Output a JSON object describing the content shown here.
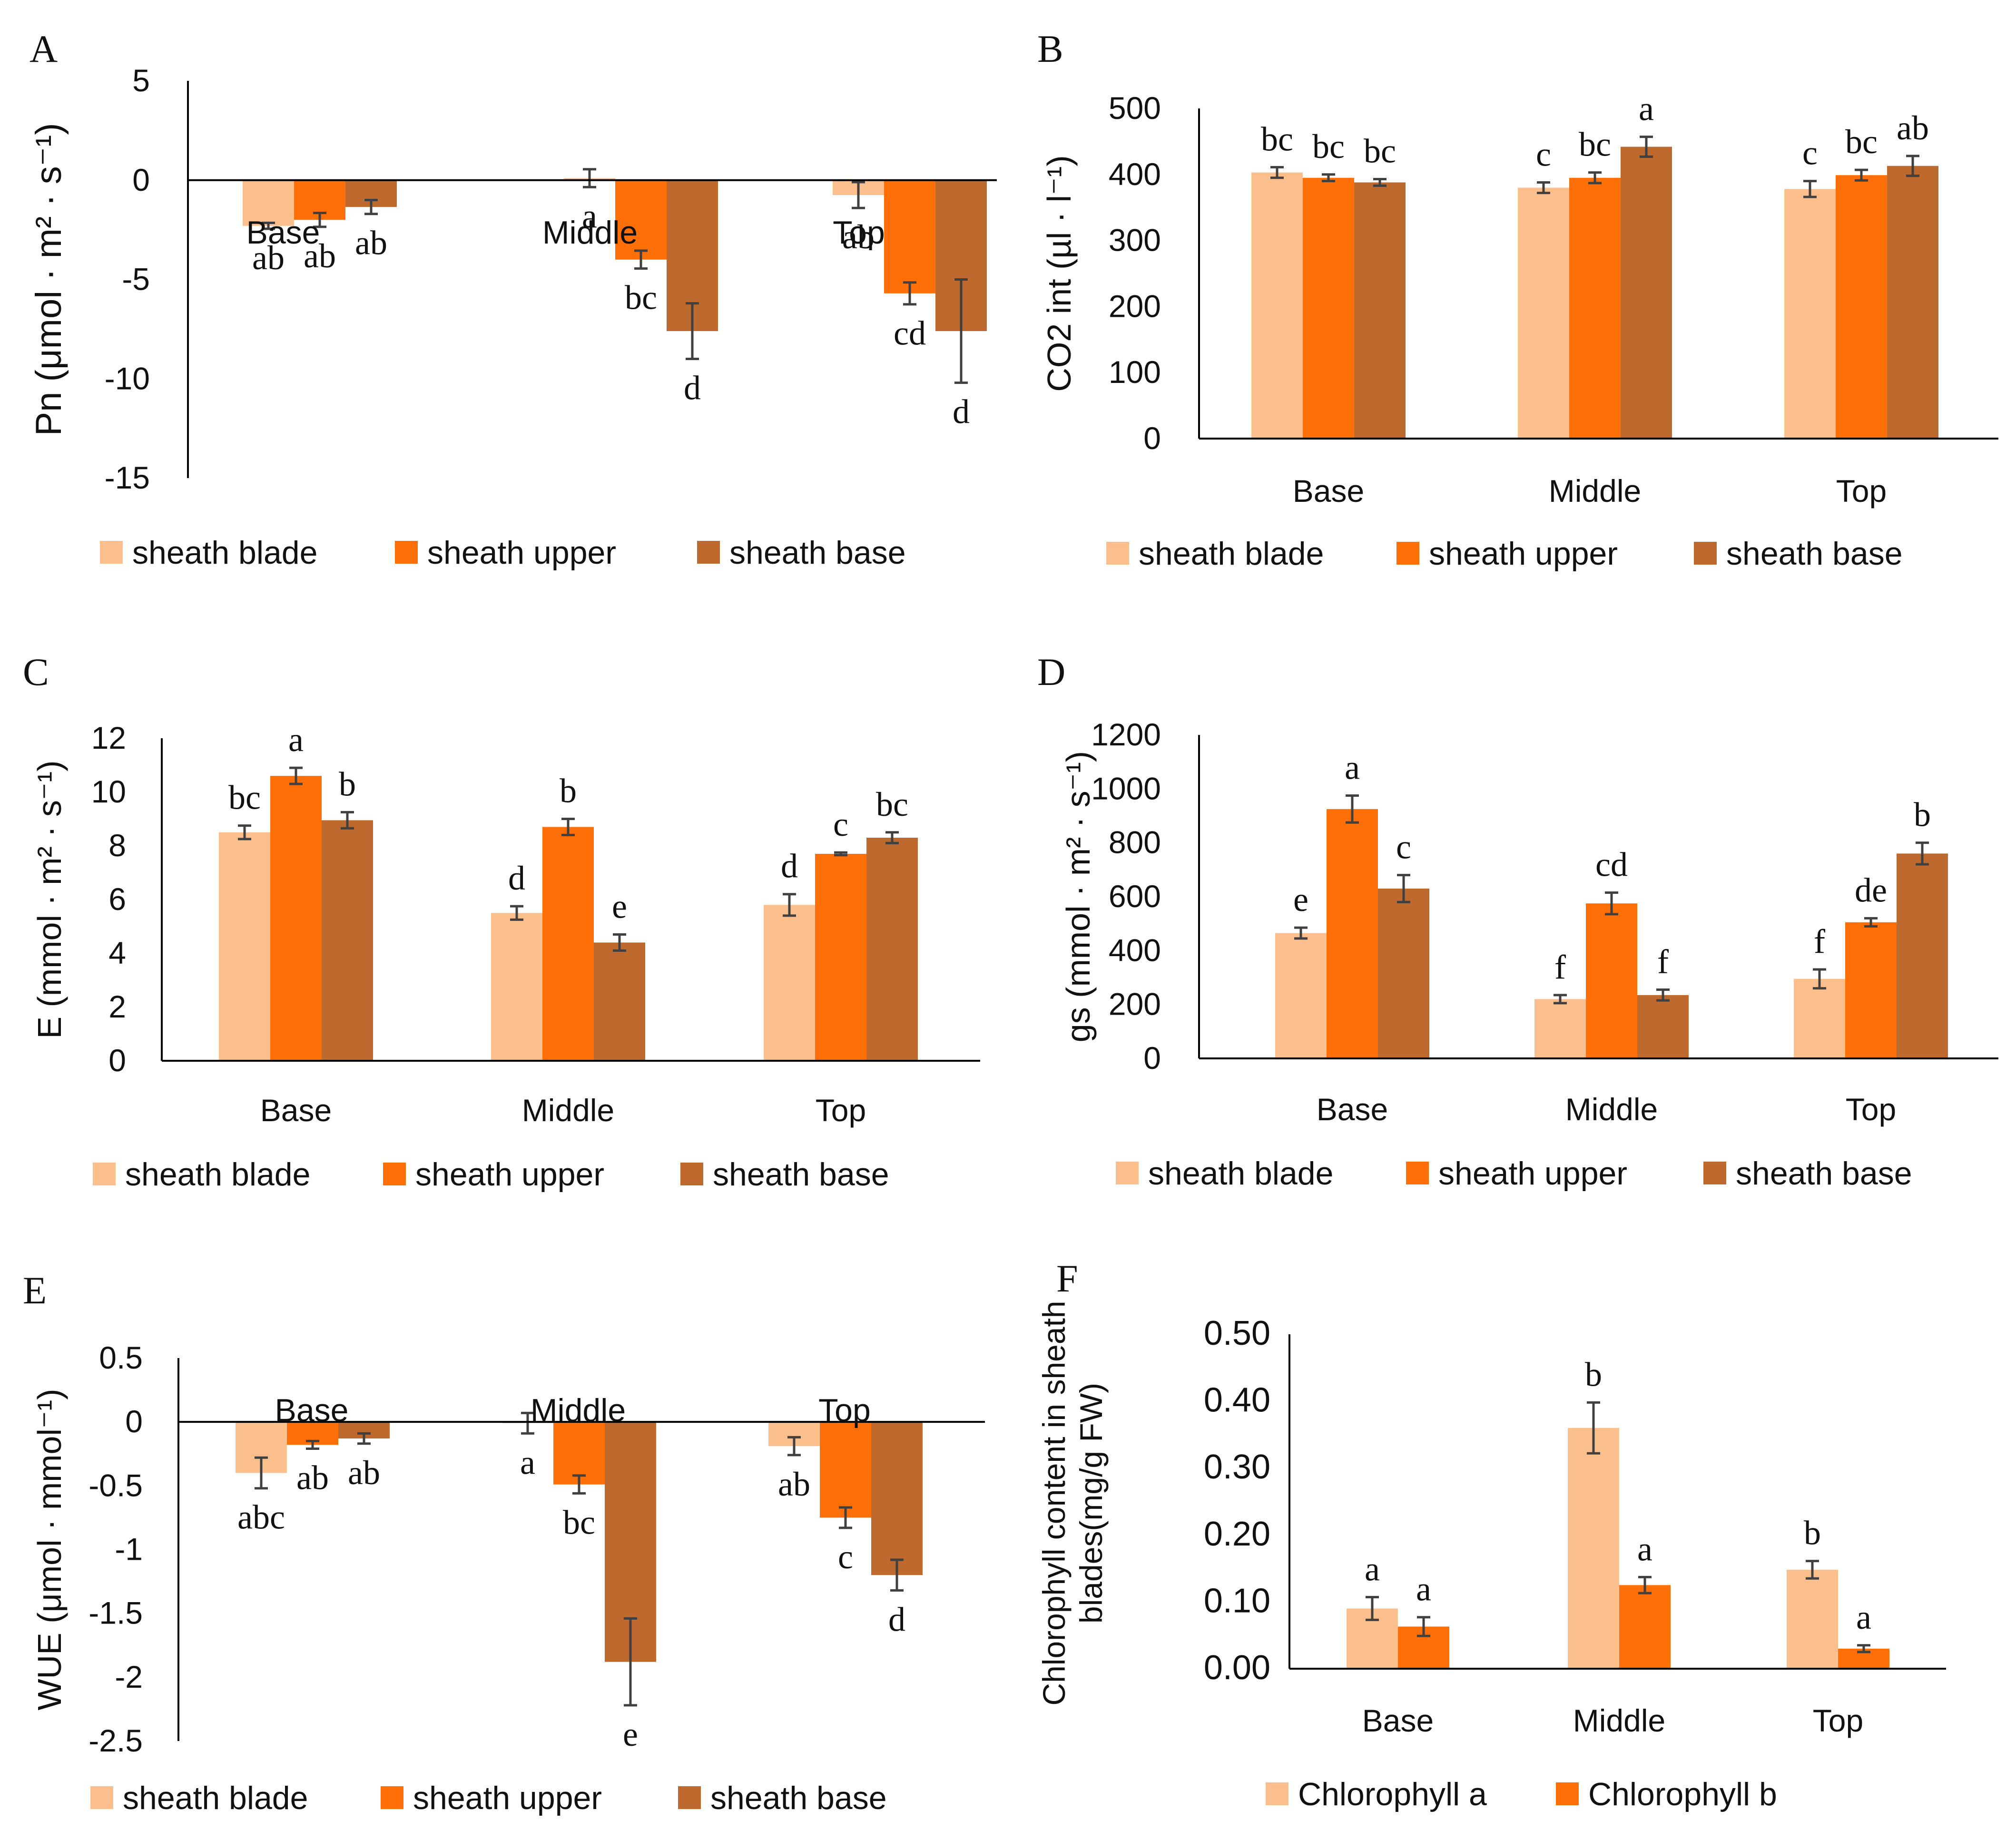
{
  "colors": {
    "sheath_blade": "#FBBF8E",
    "sheath_upper": "#FE6F08",
    "sheath_base": "#BE6A2F",
    "axis": "#000000",
    "error_bar": "#404040"
  },
  "legend_series": [
    "sheath blade",
    "sheath upper",
    "sheath base"
  ],
  "chart_data": [
    {
      "panel": "A",
      "type": "bar",
      "ylabel": "Pn (μmol · m² · s⁻¹)",
      "ylim": [
        -15,
        5
      ],
      "yticks": [
        "5",
        "0",
        "-5",
        "-10",
        "-15"
      ],
      "categories": [
        "Base",
        "Middle",
        "Top"
      ],
      "category_labels_inside": true,
      "series": [
        {
          "name": "sheath blade",
          "values": [
            -2.3,
            0.1,
            -0.75
          ],
          "errors": [
            0.15,
            0.45,
            0.65
          ],
          "letters": [
            "ab",
            "a",
            "ab"
          ]
        },
        {
          "name": "sheath upper",
          "values": [
            -2.0,
            -4.0,
            -5.7
          ],
          "errors": [
            0.35,
            0.45,
            0.55
          ],
          "letters": [
            "ab",
            "bc",
            "cd"
          ]
        },
        {
          "name": "sheath base",
          "values": [
            -1.35,
            -7.6,
            -7.6
          ],
          "errors": [
            0.35,
            1.4,
            2.6
          ],
          "letters": [
            "ab",
            "d",
            "d"
          ]
        }
      ]
    },
    {
      "panel": "B",
      "type": "bar",
      "ylabel": "CO2 int (µl · l⁻¹)",
      "ylim": [
        0,
        500
      ],
      "yticks": [
        "500",
        "400",
        "300",
        "200",
        "100",
        "0"
      ],
      "categories": [
        "Base",
        "Middle",
        "Top"
      ],
      "series": [
        {
          "name": "sheath blade",
          "values": [
            403,
            380,
            378
          ],
          "errors": [
            8,
            8,
            12
          ],
          "letters": [
            "bc",
            "c",
            "c"
          ]
        },
        {
          "name": "sheath upper",
          "values": [
            395,
            395,
            399
          ],
          "errors": [
            5,
            8,
            8
          ],
          "letters": [
            "bc",
            "bc",
            "bc"
          ]
        },
        {
          "name": "sheath base",
          "values": [
            388,
            442,
            413
          ],
          "errors": [
            5,
            15,
            15
          ],
          "letters": [
            "bc",
            "a",
            "ab"
          ]
        }
      ]
    },
    {
      "panel": "C",
      "type": "bar",
      "ylabel": "E (mmol · m² · s⁻¹)",
      "ylim": [
        0,
        12
      ],
      "yticks": [
        "12",
        "10",
        "8",
        "6",
        "4",
        "2",
        "0"
      ],
      "categories": [
        "Base",
        "Middle",
        "Top"
      ],
      "series": [
        {
          "name": "sheath blade",
          "values": [
            8.5,
            5.5,
            5.8
          ],
          "errors": [
            0.25,
            0.25,
            0.4
          ],
          "letters": [
            "bc",
            "d",
            "d"
          ]
        },
        {
          "name": "sheath upper",
          "values": [
            10.6,
            8.7,
            7.7
          ],
          "errors": [
            0.3,
            0.3,
            0.05
          ],
          "letters": [
            "a",
            "b",
            "c"
          ]
        },
        {
          "name": "sheath base",
          "values": [
            8.95,
            4.4,
            8.3
          ],
          "errors": [
            0.3,
            0.3,
            0.2
          ],
          "letters": [
            "b",
            "e",
            "bc"
          ]
        }
      ]
    },
    {
      "panel": "D",
      "type": "bar",
      "ylabel": "gs (mmol · m² · s⁻¹)",
      "ylim": [
        0,
        1200
      ],
      "yticks": [
        "1200",
        "1000",
        "800",
        "600",
        "400",
        "200",
        "0"
      ],
      "categories": [
        "Base",
        "Middle",
        "Top"
      ],
      "series": [
        {
          "name": "sheath blade",
          "values": [
            465,
            220,
            295
          ],
          "errors": [
            20,
            15,
            35
          ],
          "letters": [
            "e",
            "f",
            "f"
          ]
        },
        {
          "name": "sheath upper",
          "values": [
            925,
            575,
            505
          ],
          "errors": [
            50,
            40,
            15
          ],
          "letters": [
            "a",
            "cd",
            "de"
          ]
        },
        {
          "name": "sheath base",
          "values": [
            630,
            235,
            760
          ],
          "errors": [
            50,
            20,
            40
          ],
          "letters": [
            "c",
            "f",
            "b"
          ]
        }
      ]
    },
    {
      "panel": "E",
      "type": "bar",
      "ylabel": "WUE (μmol · mmol⁻¹)",
      "ylim": [
        -2.5,
        0.5
      ],
      "yticks": [
        "0.5",
        "0",
        "-0.5",
        "-1",
        "-1.5",
        "-2",
        "-2.5"
      ],
      "categories": [
        "Base",
        "Middle",
        "Top"
      ],
      "category_labels_inside": true,
      "series": [
        {
          "name": "sheath blade",
          "values": [
            -0.4,
            -0.01,
            -0.19
          ],
          "errors": [
            0.12,
            0.08,
            0.07
          ],
          "letters": [
            "abc",
            "a",
            "ab"
          ]
        },
        {
          "name": "sheath upper",
          "values": [
            -0.18,
            -0.49,
            -0.75
          ],
          "errors": [
            0.03,
            0.07,
            0.08
          ],
          "letters": [
            "ab",
            "bc",
            "c"
          ]
        },
        {
          "name": "sheath base",
          "values": [
            -0.13,
            -1.88,
            -1.2
          ],
          "errors": [
            0.04,
            0.34,
            0.12
          ],
          "letters": [
            "ab",
            "e",
            "d"
          ]
        }
      ]
    },
    {
      "panel": "F",
      "type": "bar",
      "ylabel": "Chlorophyll content in sheath blades(mg/g FW)",
      "ylim": [
        0,
        0.5
      ],
      "yticks": [
        "0.50",
        "0.40",
        "0.30",
        "0.20",
        "0.10",
        "0.00"
      ],
      "categories": [
        "Base",
        "Middle",
        "Top"
      ],
      "series": [
        {
          "name": "Chlorophyll a",
          "values": [
            0.09,
            0.36,
            0.148
          ],
          "errors": [
            0.017,
            0.038,
            0.013
          ],
          "letters": [
            "a",
            "b",
            "b"
          ]
        },
        {
          "name": "Chlorophyll b",
          "values": [
            0.063,
            0.125,
            0.03
          ],
          "errors": [
            0.014,
            0.012,
            0.005
          ],
          "letters": [
            "a",
            "a",
            "a"
          ]
        }
      ]
    }
  ]
}
